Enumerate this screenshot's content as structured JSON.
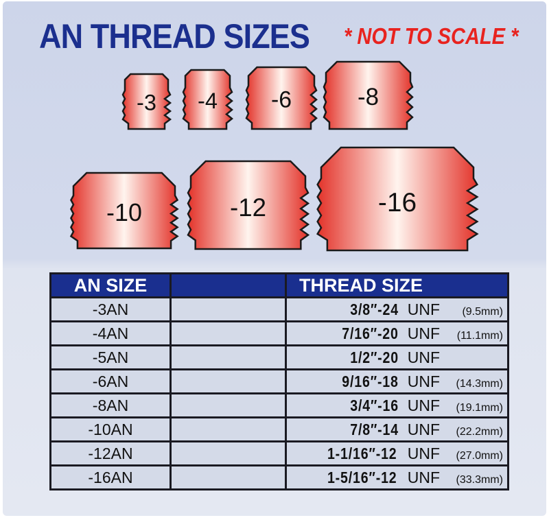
{
  "title": "AN THREAD SIZES",
  "note": "* NOT TO SCALE *",
  "colors": {
    "title": "#1b2f8e",
    "note": "#e8231f",
    "header_bg": "#1a2f8f",
    "fitting": "#e8462f"
  },
  "fittings": [
    "-3",
    "-4",
    "-6",
    "-8",
    "-10",
    "-12",
    "-16"
  ],
  "table": {
    "headers": [
      "AN SIZE",
      "",
      "THREAD SIZE"
    ],
    "rows": [
      {
        "an": "-3AN",
        "thread": "3/8″-24",
        "unit": "UNF",
        "mm": "(9.5mm)"
      },
      {
        "an": "-4AN",
        "thread": "7/16″-20",
        "unit": "UNF",
        "mm": "(11.1mm)"
      },
      {
        "an": "-5AN",
        "thread": "1/2″-20",
        "unit": "UNF",
        "mm": ""
      },
      {
        "an": "-6AN",
        "thread": "9/16″-18",
        "unit": "UNF",
        "mm": "(14.3mm)"
      },
      {
        "an": "-8AN",
        "thread": "3/4″-16",
        "unit": "UNF",
        "mm": "(19.1mm)"
      },
      {
        "an": "-10AN",
        "thread": "7/8″-14",
        "unit": "UNF",
        "mm": "(22.2mm)"
      },
      {
        "an": "-12AN",
        "thread": "1-1/16″-12",
        "unit": "UNF",
        "mm": "(27.0mm)"
      },
      {
        "an": "-16AN",
        "thread": "1-5/16″-12",
        "unit": "UNF",
        "mm": "(33.3mm)"
      }
    ]
  }
}
